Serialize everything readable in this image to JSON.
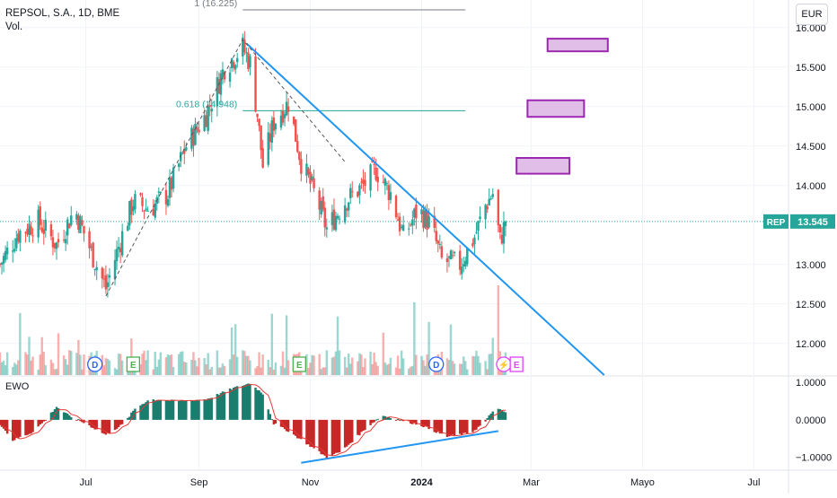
{
  "header": {
    "title": "REPSOL, S.A., 1D, BME",
    "volume_label": "Vol.",
    "currency": "EUR"
  },
  "oscillator": {
    "label": "EWO"
  },
  "price_tag": {
    "symbol": "REP",
    "value": "13.545"
  },
  "fib_levels": [
    {
      "label": "1 (16.225)",
      "value": 16.225
    },
    {
      "label": "0.618 (14.948)",
      "value": 14.948
    }
  ],
  "event_markers": [
    {
      "letter": "D",
      "kind": "dividend",
      "date": "2023-07-06"
    },
    {
      "letter": "E",
      "kind": "earnings",
      "date": "2023-07-27"
    },
    {
      "letter": "E",
      "kind": "earnings",
      "date": "2023-10-26"
    },
    {
      "letter": "D",
      "kind": "dividend",
      "date": "2024-01-09"
    },
    {
      "letter": "⚡",
      "kind": "event",
      "date": "2024-02-15"
    },
    {
      "letter": "E",
      "kind": "earnings-upcoming",
      "date": "2024-02-22"
    }
  ],
  "colors": {
    "up": "#26a69a",
    "down": "#ef5350",
    "ewo_up": "#1b7d6e",
    "ewo_down": "#c62828",
    "trendline": "#2196f3",
    "fib_one": "#787b86",
    "fib_618": "#26a69a",
    "target_box_fill": "#e1bee7",
    "target_box_border": "#9c27b0",
    "price_tag": "#26a69a",
    "dividend_marker": "#2962ff",
    "earnings_marker": "#4caf50",
    "upcoming_marker": "#e040fb"
  },
  "chart_data": [
    {
      "type": "candlestick",
      "title": "REPSOL, S.A., 1D, BME",
      "xlim": [
        "2023-05-15",
        "2024-07-20"
      ],
      "ylim": [
        11.6,
        16.35
      ],
      "x_ticks": [
        {
          "label": "Jul",
          "date": "2023-07-01"
        },
        {
          "label": "Sep",
          "date": "2023-09-01"
        },
        {
          "label": "Nov",
          "date": "2023-11-01"
        },
        {
          "label": "2024",
          "date": "2024-01-01"
        },
        {
          "label": "Mar",
          "date": "2024-03-01"
        },
        {
          "label": "Mayo",
          "date": "2024-05-01"
        },
        {
          "label": "Jul",
          "date": "2024-07-01"
        }
      ],
      "y_ticks": [
        "16.000",
        "15.500",
        "15.000",
        "14.500",
        "14.000",
        "13.000",
        "12.500",
        "12.000"
      ],
      "last_price": 13.545,
      "grid": true,
      "price_path": [
        {
          "date": "2023-05-15",
          "close": 13.0
        },
        {
          "date": "2023-05-25",
          "close": 13.4
        },
        {
          "date": "2023-06-05",
          "close": 13.55
        },
        {
          "date": "2023-06-15",
          "close": 13.25
        },
        {
          "date": "2023-06-25",
          "close": 13.7
        },
        {
          "date": "2023-07-05",
          "close": 13.1
        },
        {
          "date": "2023-07-12",
          "close": 12.7
        },
        {
          "date": "2023-07-20",
          "close": 13.3
        },
        {
          "date": "2023-07-27",
          "close": 13.8
        },
        {
          "date": "2023-08-05",
          "close": 13.7
        },
        {
          "date": "2023-08-15",
          "close": 13.9
        },
        {
          "date": "2023-08-25",
          "close": 14.5
        },
        {
          "date": "2023-09-05",
          "close": 14.9
        },
        {
          "date": "2023-09-15",
          "close": 15.5
        },
        {
          "date": "2023-09-25",
          "close": 15.75
        },
        {
          "date": "2023-09-29",
          "close": 15.55
        },
        {
          "date": "2023-10-03",
          "close": 14.9
        },
        {
          "date": "2023-10-06",
          "close": 14.25
        },
        {
          "date": "2023-10-12",
          "close": 14.8
        },
        {
          "date": "2023-10-20",
          "close": 15.05
        },
        {
          "date": "2023-10-27",
          "close": 14.3
        },
        {
          "date": "2023-11-05",
          "close": 13.8
        },
        {
          "date": "2023-11-10",
          "close": 13.45
        },
        {
          "date": "2023-11-20",
          "close": 13.8
        },
        {
          "date": "2023-11-30",
          "close": 14.0
        },
        {
          "date": "2023-12-07",
          "close": 14.2
        },
        {
          "date": "2023-12-15",
          "close": 13.9
        },
        {
          "date": "2023-12-22",
          "close": 13.35
        },
        {
          "date": "2023-12-30",
          "close": 13.7
        },
        {
          "date": "2024-01-06",
          "close": 13.5
        },
        {
          "date": "2024-01-12",
          "close": 13.05
        },
        {
          "date": "2024-01-22",
          "close": 13.0
        },
        {
          "date": "2024-01-30",
          "close": 13.35
        },
        {
          "date": "2024-02-05",
          "close": 13.75
        },
        {
          "date": "2024-02-09",
          "close": 13.9
        },
        {
          "date": "2024-02-13",
          "close": 13.3
        },
        {
          "date": "2024-02-16",
          "close": 13.545
        }
      ],
      "annotations": [
        {
          "type": "trendline",
          "from": {
            "date": "2023-09-27",
            "value": 15.8
          },
          "to": {
            "date": "2024-04-10",
            "value": 11.6
          }
        },
        {
          "type": "zigzag",
          "points": [
            {
              "date": "2023-07-12",
              "value": 12.6
            },
            {
              "date": "2023-09-25",
              "value": 15.85
            },
            {
              "date": "2023-11-20",
              "value": 14.3
            }
          ]
        },
        {
          "type": "target_box",
          "from": "2024-02-22",
          "to": "2024-03-22",
          "low": 14.15,
          "high": 14.35
        },
        {
          "type": "target_box",
          "from": "2024-02-28",
          "to": "2024-03-30",
          "low": 14.87,
          "high": 15.08
        },
        {
          "type": "target_box",
          "from": "2024-03-10",
          "to": "2024-04-12",
          "low": 15.7,
          "high": 15.86
        }
      ]
    },
    {
      "type": "bar",
      "title": "EWO",
      "ylim": [
        -1.3,
        1.15
      ],
      "y_ticks": [
        "1.0000",
        "0.0000",
        "−1.0000"
      ],
      "series": [
        {
          "date": "2023-05-15",
          "value": -0.1
        },
        {
          "date": "2023-05-22",
          "value": -0.55
        },
        {
          "date": "2023-06-01",
          "value": -0.35
        },
        {
          "date": "2023-06-08",
          "value": -0.05
        },
        {
          "date": "2023-06-15",
          "value": 0.35
        },
        {
          "date": "2023-06-22",
          "value": 0.1
        },
        {
          "date": "2023-07-01",
          "value": -0.1
        },
        {
          "date": "2023-07-12",
          "value": -0.4
        },
        {
          "date": "2023-07-22",
          "value": -0.1
        },
        {
          "date": "2023-07-28",
          "value": 0.3
        },
        {
          "date": "2023-08-05",
          "value": 0.55
        },
        {
          "date": "2023-08-20",
          "value": 0.5
        },
        {
          "date": "2023-09-05",
          "value": 0.55
        },
        {
          "date": "2023-09-20",
          "value": 0.85
        },
        {
          "date": "2023-09-29",
          "value": 0.98
        },
        {
          "date": "2023-10-06",
          "value": 0.7
        },
        {
          "date": "2023-10-12",
          "value": -0.1
        },
        {
          "date": "2023-10-20",
          "value": -0.3
        },
        {
          "date": "2023-11-01",
          "value": -0.7
        },
        {
          "date": "2023-11-10",
          "value": -1.0
        },
        {
          "date": "2023-11-18",
          "value": -0.85
        },
        {
          "date": "2023-12-01",
          "value": -0.25
        },
        {
          "date": "2023-12-10",
          "value": 0.12
        },
        {
          "date": "2023-12-20",
          "value": 0.0
        },
        {
          "date": "2024-01-01",
          "value": -0.15
        },
        {
          "date": "2024-01-15",
          "value": -0.45
        },
        {
          "date": "2024-01-28",
          "value": -0.35
        },
        {
          "date": "2024-02-05",
          "value": -0.05
        },
        {
          "date": "2024-02-10",
          "value": 0.32
        },
        {
          "date": "2024-02-16",
          "value": 0.2
        }
      ],
      "annotations": [
        {
          "type": "trendline",
          "from": {
            "date": "2023-10-27",
            "value": -1.15
          },
          "to": {
            "date": "2024-02-12",
            "value": -0.3
          }
        }
      ]
    }
  ]
}
